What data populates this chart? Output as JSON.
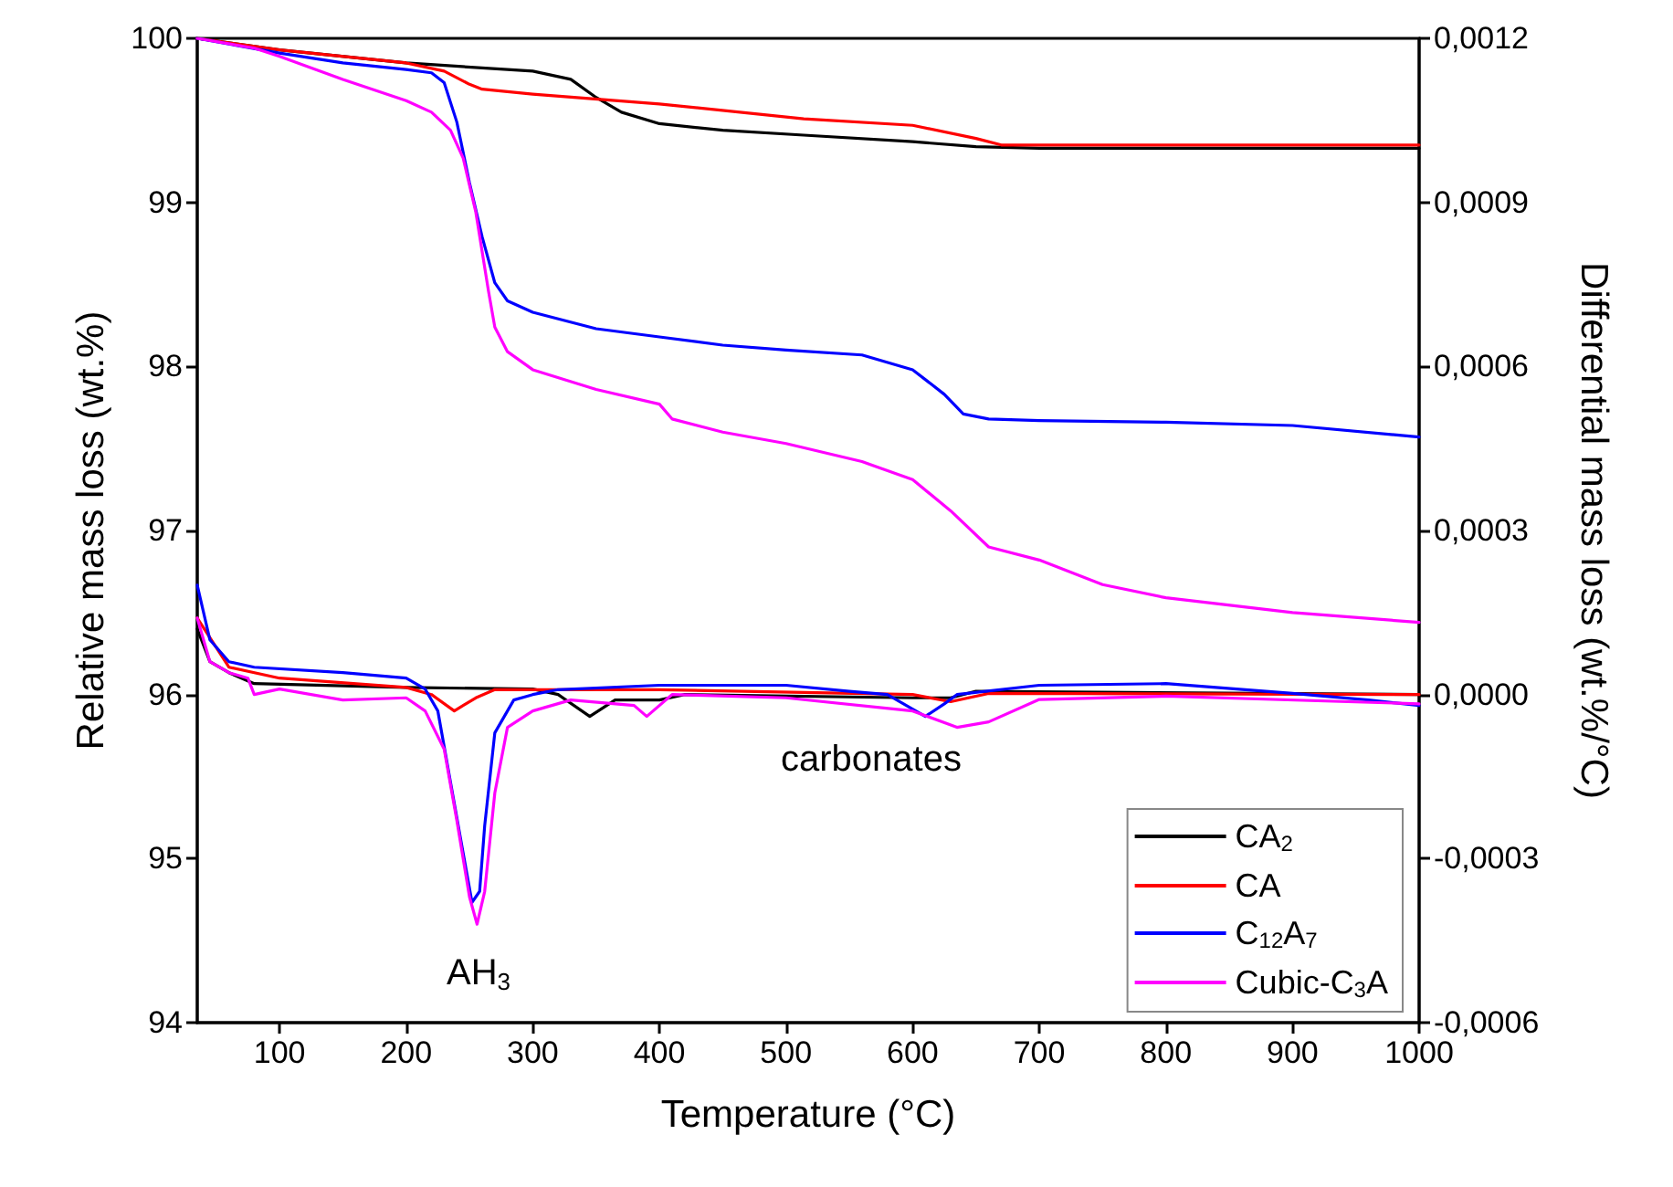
{
  "chart_data": {
    "type": "line",
    "xlabel": "Temperature (°C)",
    "ylabel": "Relative mass loss (wt.%)",
    "y2label": "Differential mass loss (wt.%/°C)",
    "xlim": [
      35,
      1000
    ],
    "xticks": [
      100,
      200,
      300,
      400,
      500,
      600,
      700,
      800,
      900,
      1000
    ],
    "ylim": [
      94,
      100
    ],
    "yticks": [
      94,
      95,
      96,
      97,
      98,
      99,
      100
    ],
    "y2lim": [
      -0.0006,
      0.0012
    ],
    "y2ticks": [
      {
        "value": -0.0006,
        "label": "-0,0006"
      },
      {
        "value": -0.0003,
        "label": "-0,0003"
      },
      {
        "value": 0,
        "label": "0,0000"
      },
      {
        "value": 0.0003,
        "label": "0,0003"
      },
      {
        "value": 0.0006,
        "label": "0,0006"
      },
      {
        "value": 0.0009,
        "label": "0,0009"
      },
      {
        "value": 0.0012,
        "label": "0,0012"
      }
    ],
    "grid": false,
    "legend": "bottom right",
    "marker": "none",
    "line_style": "solid",
    "annotations": [
      "AH$_{3}$",
      "carbonates"
    ],
    "series": [
      {
        "name": "CA$_{2}$",
        "color": "#000000",
        "x": [
          35,
          100,
          200,
          300,
          330,
          350,
          370,
          400,
          450,
          514,
          600,
          650,
          700,
          800,
          900,
          1000
        ],
        "values": [
          100,
          99.93,
          99.85,
          99.8,
          99.75,
          99.64,
          99.55,
          99.48,
          99.44,
          99.41,
          99.37,
          99.34,
          99.33,
          99.33,
          99.33,
          99.33
        ]
      },
      {
        "name": "CA",
        "color": "#ff0000",
        "x": [
          35,
          100,
          200,
          230,
          250,
          260,
          300,
          400,
          514,
          600,
          650,
          670,
          800,
          1000
        ],
        "values": [
          100,
          99.93,
          99.85,
          99.8,
          99.72,
          99.69,
          99.66,
          99.6,
          99.51,
          99.47,
          99.39,
          99.35,
          99.35,
          99.35
        ]
      },
      {
        "name": "C$_{12}$A$_{7}$",
        "color": "#0000ff",
        "x": [
          35,
          100,
          150,
          200,
          220,
          230,
          240,
          250,
          260,
          270,
          280,
          300,
          350,
          400,
          450,
          500,
          560,
          600,
          625,
          640,
          660,
          700,
          800,
          900,
          1000
        ],
        "values": [
          100,
          99.91,
          99.85,
          99.81,
          99.79,
          99.73,
          99.49,
          99.12,
          98.79,
          98.51,
          98.4,
          98.33,
          98.23,
          98.18,
          98.13,
          98.1,
          98.07,
          97.98,
          97.83,
          97.71,
          97.68,
          97.67,
          97.66,
          97.64,
          97.57
        ]
      },
      {
        "name": "Cubic-C$_{3}$A",
        "color": "#ff00ff",
        "x": [
          35,
          80,
          100,
          150,
          200,
          220,
          235,
          245,
          255,
          265,
          270,
          280,
          300,
          350,
          400,
          410,
          450,
          500,
          560,
          600,
          630,
          660,
          700,
          750,
          800,
          900,
          1000
        ],
        "values": [
          100,
          99.94,
          99.89,
          99.75,
          99.62,
          99.55,
          99.44,
          99.27,
          98.94,
          98.46,
          98.24,
          98.09,
          97.98,
          97.86,
          97.77,
          97.68,
          97.6,
          97.53,
          97.42,
          97.31,
          97.12,
          96.9,
          96.82,
          96.67,
          96.59,
          96.5,
          96.44
        ]
      },
      {
        "axis": "y2",
        "color": "#000000",
        "x": [
          35,
          45,
          60,
          80,
          200,
          300,
          320,
          345,
          365,
          400,
          420,
          600,
          630,
          650,
          1000
        ],
        "values": [
          0.00012,
          6e-05,
          4e-05,
          2e-05,
          1.3e-05,
          1e-05,
          0,
          -4e-05,
          -1e-05,
          -1e-05,
          0,
          -6e-06,
          -6e-06,
          6e-06,
          0
        ]
      },
      {
        "axis": "y2",
        "color": "#ff0000",
        "x": [
          35,
          60,
          100,
          200,
          220,
          238,
          255,
          270,
          400,
          600,
          630,
          660,
          1000
        ],
        "values": [
          0.00014,
          5e-05,
          3e-05,
          1.3e-05,
          0,
          -3e-05,
          -6e-06,
          9e-06,
          9e-06,
          0,
          -1.3e-05,
          2e-06,
          0
        ]
      },
      {
        "axis": "y2",
        "color": "#0000ff",
        "x": [
          35,
          45,
          60,
          80,
          150,
          200,
          215,
          225,
          235,
          245,
          252,
          258,
          262,
          270,
          285,
          300,
          320,
          400,
          500,
          550,
          580,
          610,
          625,
          635,
          700,
          800,
          900,
          960,
          1000
        ],
        "values": [
          0.0002,
          0.0001,
          6e-05,
          5e-05,
          4e-05,
          3e-05,
          1e-05,
          -3e-05,
          -0.00016,
          -0.00029,
          -0.00038,
          -0.00036,
          -0.00024,
          -7e-05,
          -1e-05,
          0,
          9e-06,
          1.7e-05,
          1.7e-05,
          6e-06,
          0,
          -4e-05,
          -1.7e-05,
          0,
          1.7e-05,
          2e-05,
          2e-06,
          -1e-05,
          -2e-05
        ]
      },
      {
        "axis": "y2",
        "color": "#ff00ff",
        "x": [
          35,
          45,
          60,
          75,
          80,
          100,
          150,
          200,
          215,
          230,
          240,
          250,
          256,
          262,
          270,
          280,
          300,
          330,
          380,
          390,
          410,
          500,
          600,
          635,
          660,
          700,
          800,
          1000
        ],
        "values": [
          0.00014,
          6e-05,
          4e-05,
          3e-05,
          0,
          1e-05,
          -1e-05,
          -6e-06,
          -3e-05,
          -0.0001,
          -0.00023,
          -0.00037,
          -0.00042,
          -0.00036,
          -0.00018,
          -6e-05,
          -3e-05,
          -1e-05,
          -2e-05,
          -4e-05,
          0,
          -6e-06,
          -3e-05,
          -6e-05,
          -5e-05,
          -9e-06,
          -3e-06,
          -1.7e-05
        ]
      }
    ]
  }
}
